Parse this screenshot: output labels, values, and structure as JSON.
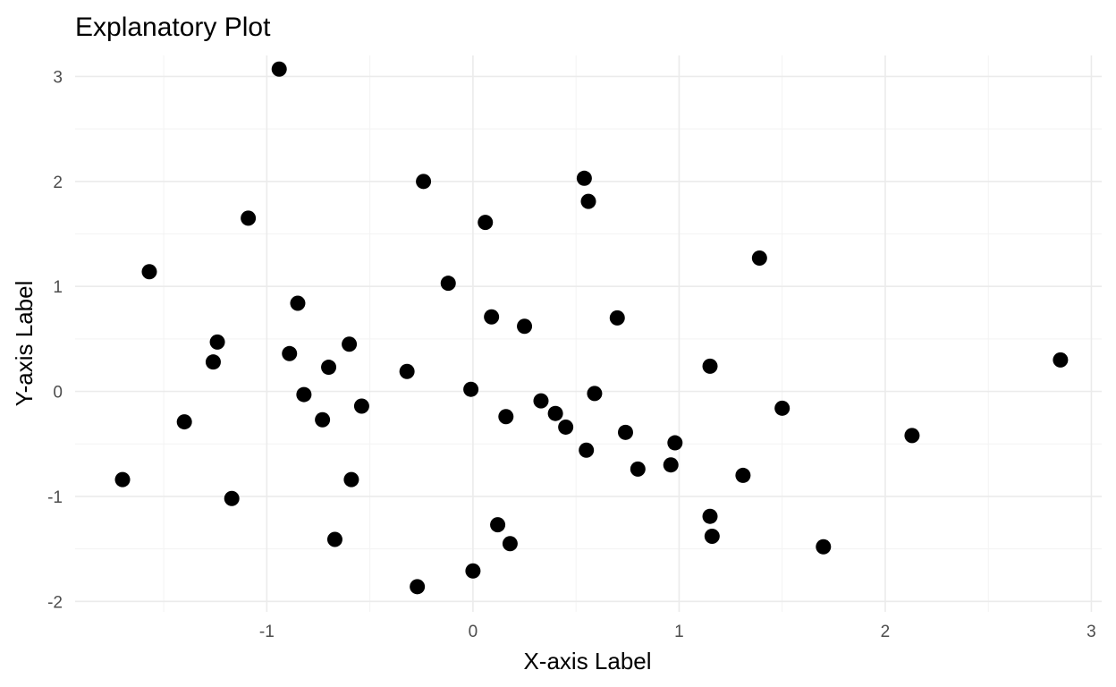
{
  "chart_data": {
    "type": "scatter",
    "title": "Explanatory Plot",
    "xlabel": "X-axis Label",
    "ylabel": "Y-axis Label",
    "xlim": [
      -1.93,
      3.05
    ],
    "ylim": [
      -2.1,
      3.2
    ],
    "x_ticks": [
      -1,
      0,
      1,
      2,
      3
    ],
    "y_ticks": [
      -2,
      -1,
      0,
      1,
      2,
      3
    ],
    "x_tick_labels": [
      "-1",
      "0",
      "1",
      "2",
      "3"
    ],
    "y_tick_labels": [
      "-2",
      "-1",
      "0",
      "1",
      "2",
      "3"
    ],
    "grid": true,
    "legend": "none",
    "point_color": "#000000",
    "points": [
      {
        "x": -0.94,
        "y": 3.07
      },
      {
        "x": -0.24,
        "y": 2.0
      },
      {
        "x": 0.54,
        "y": 2.03
      },
      {
        "x": 0.56,
        "y": 1.81
      },
      {
        "x": 0.06,
        "y": 1.61
      },
      {
        "x": -1.09,
        "y": 1.65
      },
      {
        "x": -1.57,
        "y": 1.14
      },
      {
        "x": 1.39,
        "y": 1.27
      },
      {
        "x": -0.12,
        "y": 1.03
      },
      {
        "x": -0.85,
        "y": 0.84
      },
      {
        "x": 0.09,
        "y": 0.71
      },
      {
        "x": 0.7,
        "y": 0.7
      },
      {
        "x": 0.25,
        "y": 0.62
      },
      {
        "x": -1.24,
        "y": 0.47
      },
      {
        "x": -0.6,
        "y": 0.45
      },
      {
        "x": -0.89,
        "y": 0.36
      },
      {
        "x": -1.26,
        "y": 0.28
      },
      {
        "x": -0.7,
        "y": 0.23
      },
      {
        "x": 1.15,
        "y": 0.24
      },
      {
        "x": -0.32,
        "y": 0.19
      },
      {
        "x": 2.85,
        "y": 0.3
      },
      {
        "x": -0.01,
        "y": 0.02
      },
      {
        "x": -0.82,
        "y": -0.03
      },
      {
        "x": 0.59,
        "y": -0.02
      },
      {
        "x": 0.33,
        "y": -0.09
      },
      {
        "x": -0.54,
        "y": -0.14
      },
      {
        "x": 1.5,
        "y": -0.16
      },
      {
        "x": 0.4,
        "y": -0.21
      },
      {
        "x": 0.16,
        "y": -0.24
      },
      {
        "x": -0.73,
        "y": -0.27
      },
      {
        "x": -1.4,
        "y": -0.29
      },
      {
        "x": 0.45,
        "y": -0.34
      },
      {
        "x": 0.74,
        "y": -0.39
      },
      {
        "x": 2.13,
        "y": -0.42
      },
      {
        "x": 0.98,
        "y": -0.49
      },
      {
        "x": 0.55,
        "y": -0.56
      },
      {
        "x": 0.96,
        "y": -0.7
      },
      {
        "x": 0.8,
        "y": -0.74
      },
      {
        "x": 1.31,
        "y": -0.8
      },
      {
        "x": -1.7,
        "y": -0.84
      },
      {
        "x": -0.59,
        "y": -0.84
      },
      {
        "x": -1.17,
        "y": -1.02
      },
      {
        "x": 1.15,
        "y": -1.19
      },
      {
        "x": 0.12,
        "y": -1.27
      },
      {
        "x": 1.16,
        "y": -1.38
      },
      {
        "x": -0.67,
        "y": -1.41
      },
      {
        "x": 0.18,
        "y": -1.45
      },
      {
        "x": 1.7,
        "y": -1.48
      },
      {
        "x": 0.0,
        "y": -1.71
      },
      {
        "x": -0.27,
        "y": -1.86
      }
    ]
  }
}
